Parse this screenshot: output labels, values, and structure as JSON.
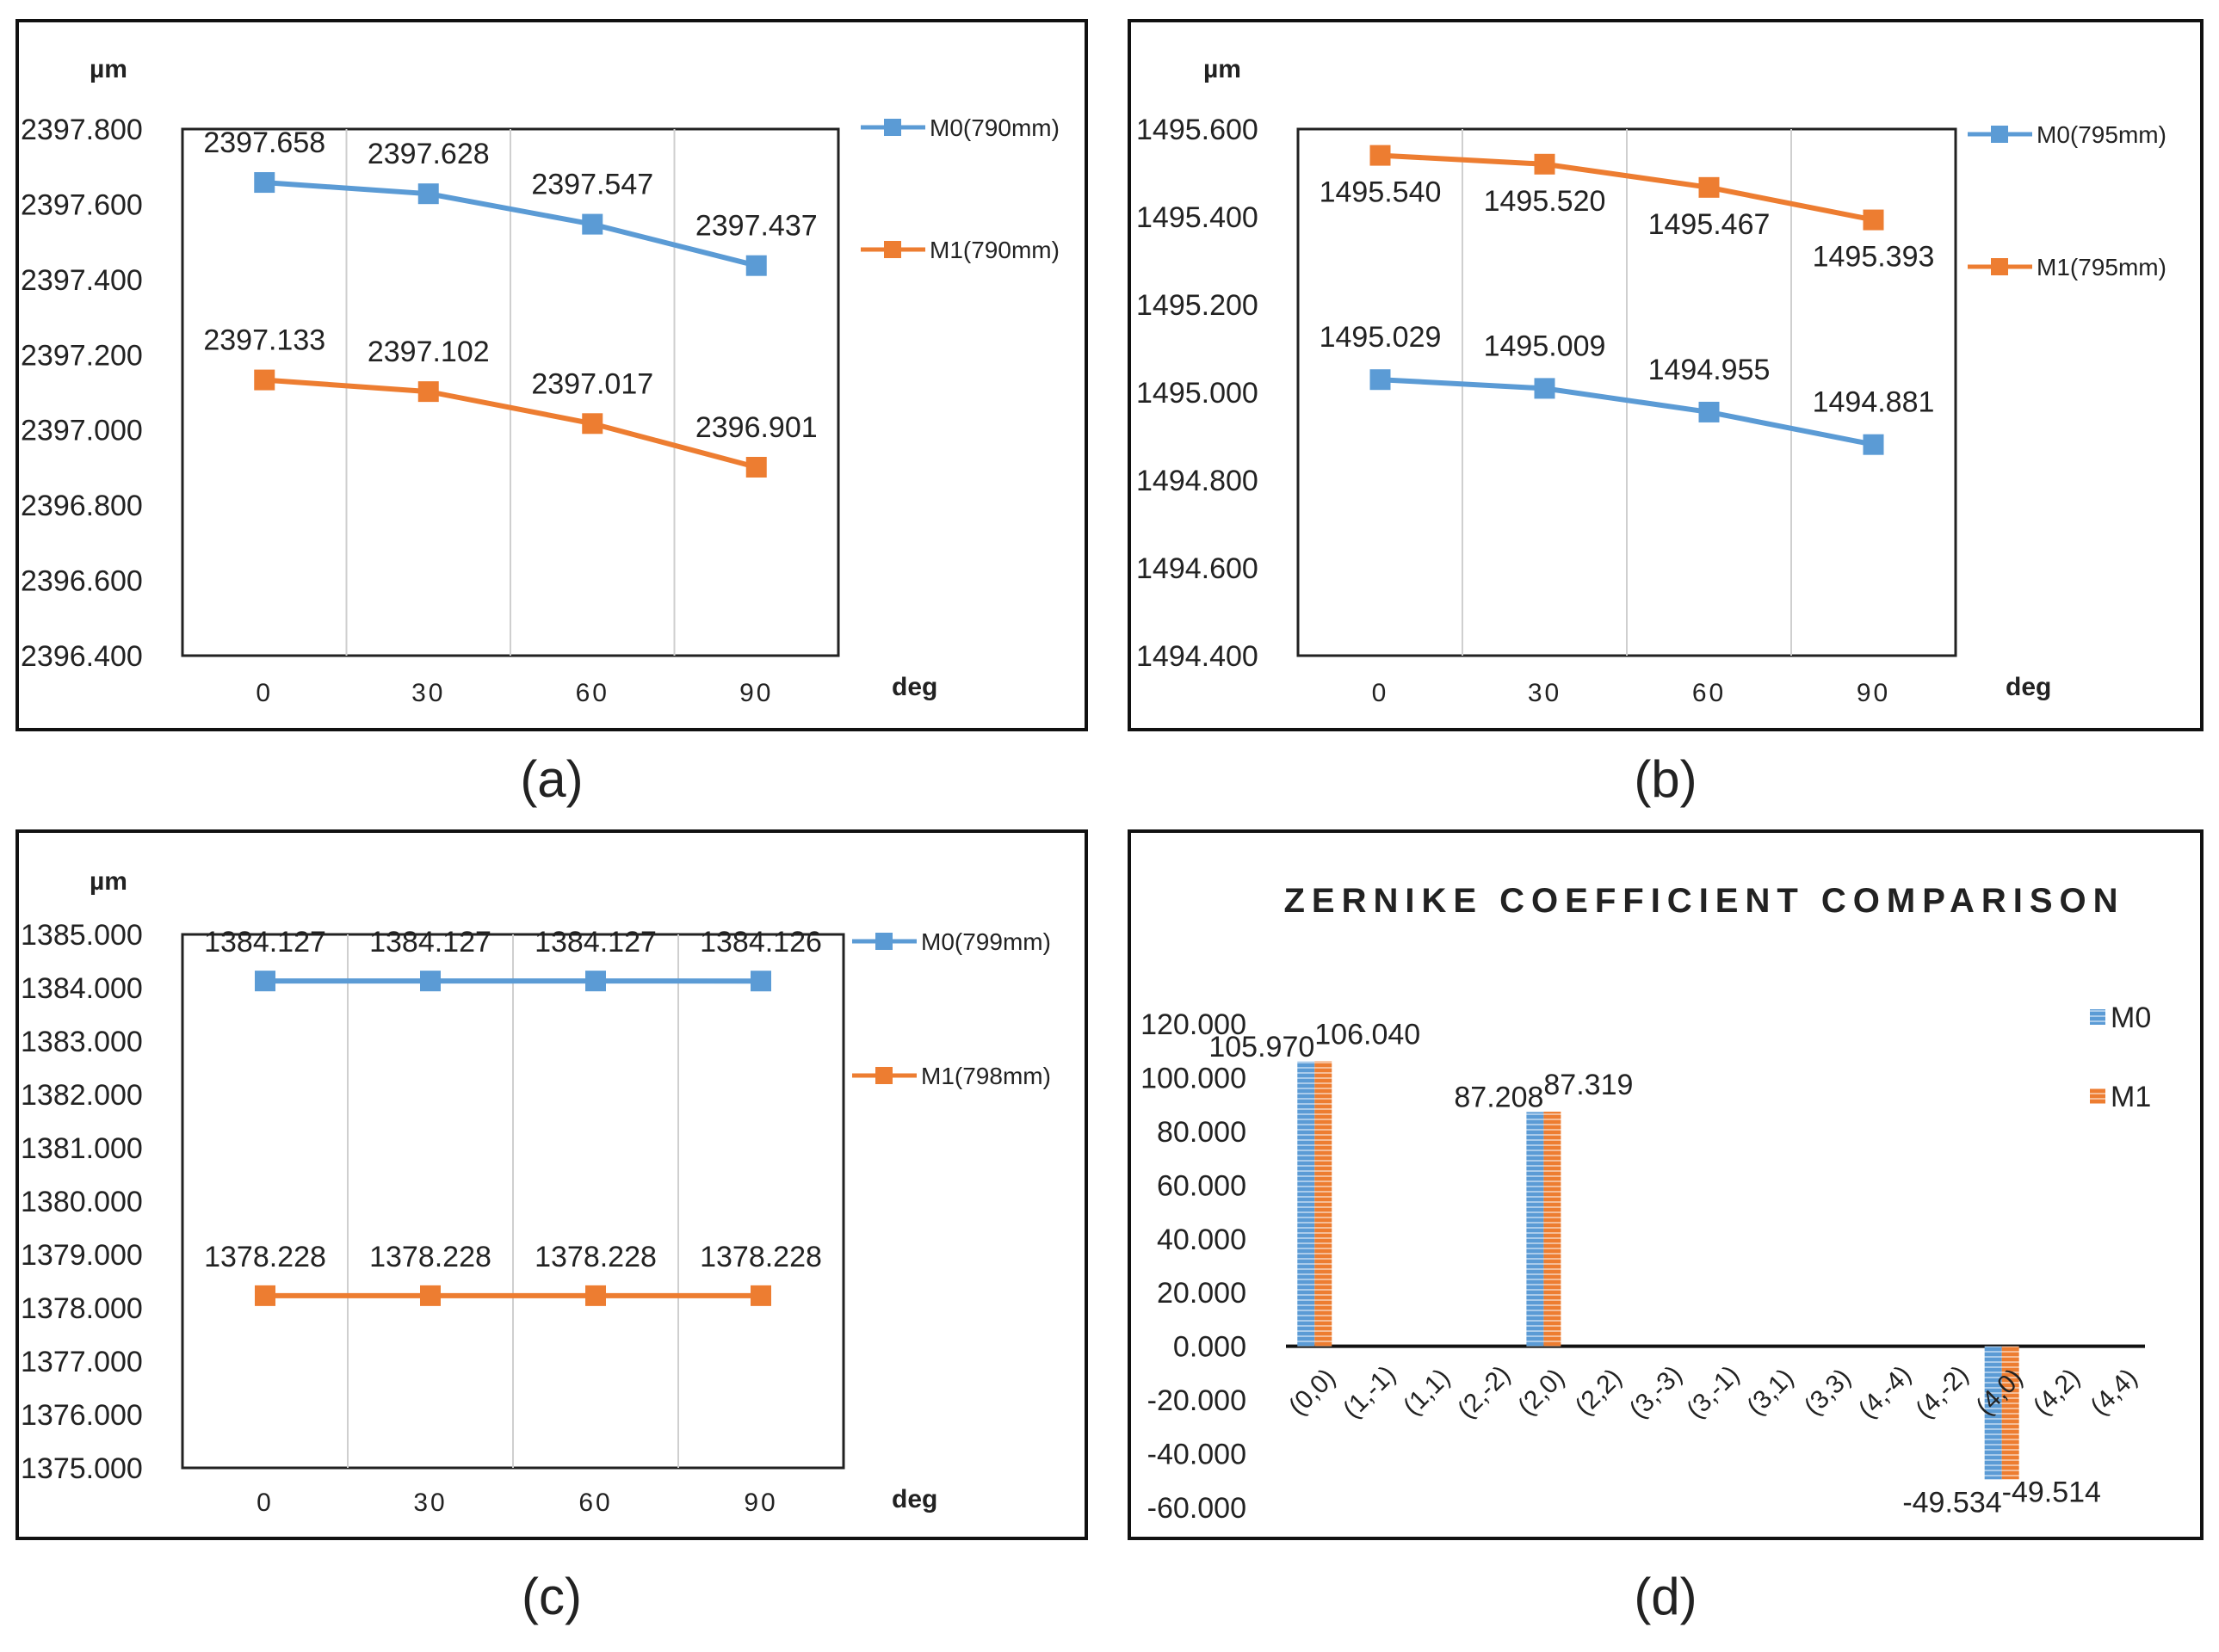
{
  "captions": [
    "(a)",
    "(b)",
    "(c)",
    "(d)"
  ],
  "colors": {
    "m0": "#5b9bd5",
    "m1": "#ed7d31"
  },
  "chart_data": [
    {
      "type": "line",
      "caption": "(a)",
      "ylabel": "µm",
      "xlabel": "deg",
      "categories": [
        "0",
        "30",
        "60",
        "90"
      ],
      "ylim": [
        2396.4,
        2397.8
      ],
      "ytick_step": 0.2,
      "ytick_labels": [
        "2397.800",
        "2397.600",
        "2397.400",
        "2397.200",
        "2397.000",
        "2396.800",
        "2396.600",
        "2396.400"
      ],
      "series": [
        {
          "name": "M0(790mm)",
          "values": [
            2397.658,
            2397.628,
            2397.547,
            2397.437
          ],
          "labels": [
            "2397.658",
            "2397.628",
            "2397.547",
            "2397.437"
          ]
        },
        {
          "name": "M1(790mm)",
          "values": [
            2397.133,
            2397.102,
            2397.017,
            2396.901
          ],
          "labels": [
            "2397.133",
            "2397.102",
            "2397.017",
            "2396.901"
          ]
        }
      ]
    },
    {
      "type": "line",
      "caption": "(b)",
      "ylabel": "µm",
      "xlabel": "deg",
      "categories": [
        "0",
        "30",
        "60",
        "90"
      ],
      "ylim": [
        1494.4,
        1495.6
      ],
      "ytick_step": 0.2,
      "ytick_labels": [
        "1495.600",
        "1495.400",
        "1495.200",
        "1495.000",
        "1494.800",
        "1494.600",
        "1494.400"
      ],
      "series": [
        {
          "name": "M0(795mm)",
          "values": [
            1495.029,
            1495.009,
            1494.955,
            1494.881
          ],
          "labels": [
            "1495.029",
            "1495.009",
            "1494.955",
            "1494.881"
          ]
        },
        {
          "name": "M1(795mm)",
          "values": [
            1495.54,
            1495.52,
            1495.467,
            1495.393
          ],
          "labels": [
            "1495.540",
            "1495.520",
            "1495.467",
            "1495.393"
          ]
        }
      ]
    },
    {
      "type": "line",
      "caption": "(c)",
      "ylabel": "µm",
      "xlabel": "deg",
      "categories": [
        "0",
        "30",
        "60",
        "90"
      ],
      "ylim": [
        1375.0,
        1385.0
      ],
      "ytick_step": 1.0,
      "ytick_labels": [
        "1385.000",
        "1384.000",
        "1383.000",
        "1382.000",
        "1381.000",
        "1380.000",
        "1379.000",
        "1378.000",
        "1377.000",
        "1376.000",
        "1375.000"
      ],
      "series": [
        {
          "name": "M0(799mm)",
          "values": [
            1384.127,
            1384.127,
            1384.127,
            1384.126
          ],
          "labels": [
            "1384.127",
            "1384.127",
            "1384.127",
            "1384.126"
          ]
        },
        {
          "name": "M1(798mm)",
          "values": [
            1378.228,
            1378.228,
            1378.228,
            1378.228
          ],
          "labels": [
            "1378.228",
            "1378.228",
            "1378.228",
            "1378.228"
          ]
        }
      ]
    },
    {
      "type": "bar",
      "caption": "(d)",
      "title": "ZERNIKE COEFFICIENT COMPARISON",
      "categories": [
        "(0,0)",
        "(1,-1)",
        "(1,1)",
        "(2,-2)",
        "(2,0)",
        "(2,2)",
        "(3,-3)",
        "(3,-1)",
        "(3,1)",
        "(3,3)",
        "(4,-4)",
        "(4,-2)",
        "(4,0)",
        "(4,2)",
        "(4,4)"
      ],
      "ylim": [
        -60,
        120
      ],
      "ytick_step": 20,
      "ytick_labels": [
        "120.000",
        "100.000",
        "80.000",
        "60.000",
        "40.000",
        "20.000",
        "0.000",
        "-20.000",
        "-40.000",
        "-60.000"
      ],
      "series": [
        {
          "name": "M0",
          "values": [
            105.97,
            0,
            0,
            0,
            87.208,
            0,
            0,
            0,
            0,
            0,
            0,
            0,
            -49.534,
            0,
            0
          ],
          "labels": [
            "105.970",
            "",
            "",
            "",
            "87.208",
            "",
            "",
            "",
            "",
            "",
            "",
            "",
            "-49.534",
            "",
            ""
          ]
        },
        {
          "name": "M1",
          "values": [
            106.04,
            0,
            0,
            0,
            87.319,
            0,
            0,
            0,
            0,
            0,
            0,
            0,
            -49.514,
            0,
            0
          ],
          "labels": [
            "106.040",
            "",
            "",
            "",
            "87.319",
            "",
            "",
            "",
            "",
            "",
            "",
            "",
            "-49.514",
            "",
            ""
          ]
        }
      ]
    }
  ]
}
